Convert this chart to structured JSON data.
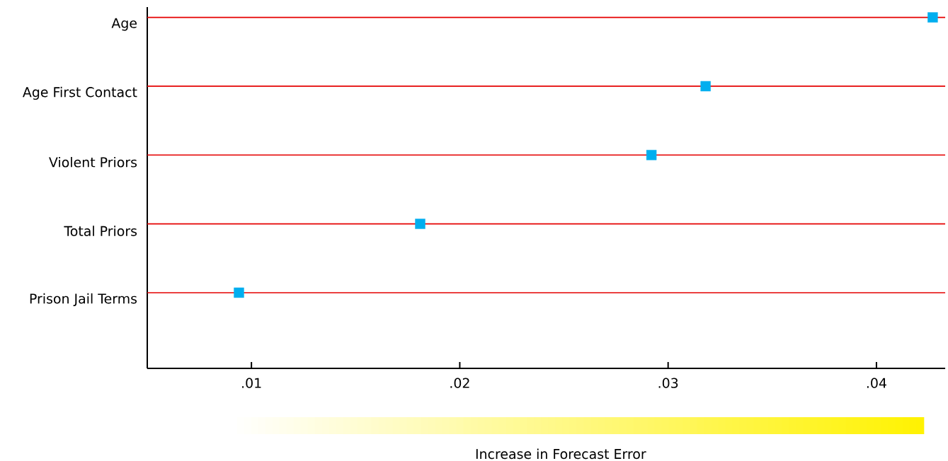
{
  "chart_data": {
    "type": "scatter",
    "orientation": "horizontal",
    "xlabel": "Increase in Forecast Error",
    "categories": [
      "Age",
      "Age First Contact",
      "Violent Priors",
      "Total Priors",
      "Prison Jail Terms"
    ],
    "series": [
      {
        "color": "#00aeef",
        "values": [
          0.0427,
          0.0318,
          0.0292,
          0.0181,
          0.0094
        ]
      }
    ],
    "marker": "square",
    "ref_lines": [
      {
        "axis": "y",
        "value": "Age",
        "color": "#e50000"
      },
      {
        "axis": "y",
        "value": "Age First Contact",
        "color": "#e50000"
      },
      {
        "axis": "y",
        "value": "Violent Priors",
        "color": "#e50000"
      },
      {
        "axis": "y",
        "value": "Total Priors",
        "color": "#e50000"
      },
      {
        "axis": "y",
        "value": "Prison Jail Terms",
        "color": "#e50000"
      }
    ],
    "xlim": [
      0.005,
      0.0433
    ],
    "xticks": [
      {
        "value": 0.01,
        "label": ".01"
      },
      {
        "value": 0.02,
        "label": ".02"
      },
      {
        "value": 0.03,
        "label": ".03"
      },
      {
        "value": 0.04,
        "label": ".04"
      }
    ]
  }
}
